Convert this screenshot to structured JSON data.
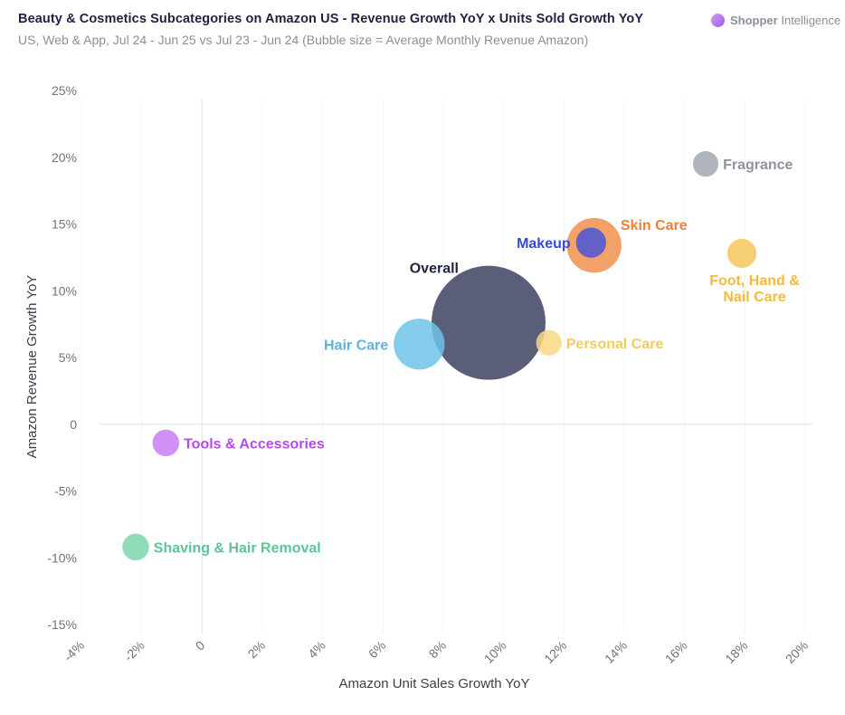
{
  "header": {
    "title": "Beauty & Cosmetics Subcategories on Amazon US - Revenue Growth YoY x Units Sold Growth YoY",
    "subtitle": "US, Web & App, Jul 24 - Jun 25 vs Jul 23 - Jun 24 (Bubble size = Average Monthly Revenue Amazon)",
    "brand_bold": "Shopper",
    "brand_rest": " Intelligence",
    "brand_icon": "shopper-intelligence-logo-icon"
  },
  "chart_data": {
    "type": "scatter",
    "subtype": "bubble",
    "xlabel": "Amazon Unit Sales Growth YoY",
    "ylabel": "Amazon Revenue Growth YoY",
    "xlim": [
      -4,
      20
    ],
    "ylim": [
      -15,
      25
    ],
    "x_ticks": [
      -4,
      -2,
      0,
      2,
      4,
      6,
      8,
      10,
      12,
      14,
      16,
      18,
      20
    ],
    "y_ticks": [
      25,
      20,
      15,
      10,
      5,
      0,
      -5,
      -10,
      -15
    ],
    "x_tick_labels": [
      "-4%",
      "-2%",
      "0",
      "2%",
      "4%",
      "6%",
      "8%",
      "10%",
      "12%",
      "14%",
      "16%",
      "18%",
      "20%"
    ],
    "y_tick_labels": [
      "25%",
      "20%",
      "15%",
      "10%",
      "5%",
      "0",
      "-5%",
      "-10%",
      "-15%"
    ],
    "zero_lines": true,
    "series": [
      {
        "name": "Overall",
        "x": 9.5,
        "y": 7.6,
        "size": 100,
        "color": "#3e4262",
        "label_color": "#1f2340",
        "label_pos": "top-left"
      },
      {
        "name": "Hair Care",
        "x": 7.2,
        "y": 6.0,
        "size": 20,
        "color": "#6ec3e8",
        "label_color": "#5ab4de",
        "label_pos": "left"
      },
      {
        "name": "Skin Care",
        "x": 13.0,
        "y": 13.4,
        "size": 23,
        "color": "#f0904f",
        "label_color": "#ee7f37",
        "label_pos": "top-right"
      },
      {
        "name": "Makeup",
        "x": 12.9,
        "y": 13.6,
        "size": 7,
        "color": "#4a55d8",
        "label_color": "#3548de",
        "label_pos": "left"
      },
      {
        "name": "Personal Care",
        "x": 11.5,
        "y": 6.1,
        "size": 5,
        "color": "#f9d882",
        "label_color": "#f2cc60",
        "label_pos": "right"
      },
      {
        "name": "Fragrance",
        "x": 16.7,
        "y": 19.5,
        "size": 5,
        "color": "#a2a7b0",
        "label_color": "#8e939c",
        "label_pos": "right"
      },
      {
        "name": "Foot, Hand & Nail Care",
        "x": 17.9,
        "y": 12.8,
        "size": 6.5,
        "color": "#f5c65a",
        "label_color": "#f2bb3c",
        "label_pos": "bottom"
      },
      {
        "name": "Tools & Accessories",
        "x": -1.2,
        "y": -1.4,
        "size": 5.5,
        "color": "#c87ef5",
        "label_color": "#b44ce8",
        "label_pos": "right"
      },
      {
        "name": "Shaving & Hair Removal",
        "x": -2.2,
        "y": -9.2,
        "size": 5.5,
        "color": "#7ed6ab",
        "label_color": "#5cc596",
        "label_pos": "right"
      }
    ]
  }
}
